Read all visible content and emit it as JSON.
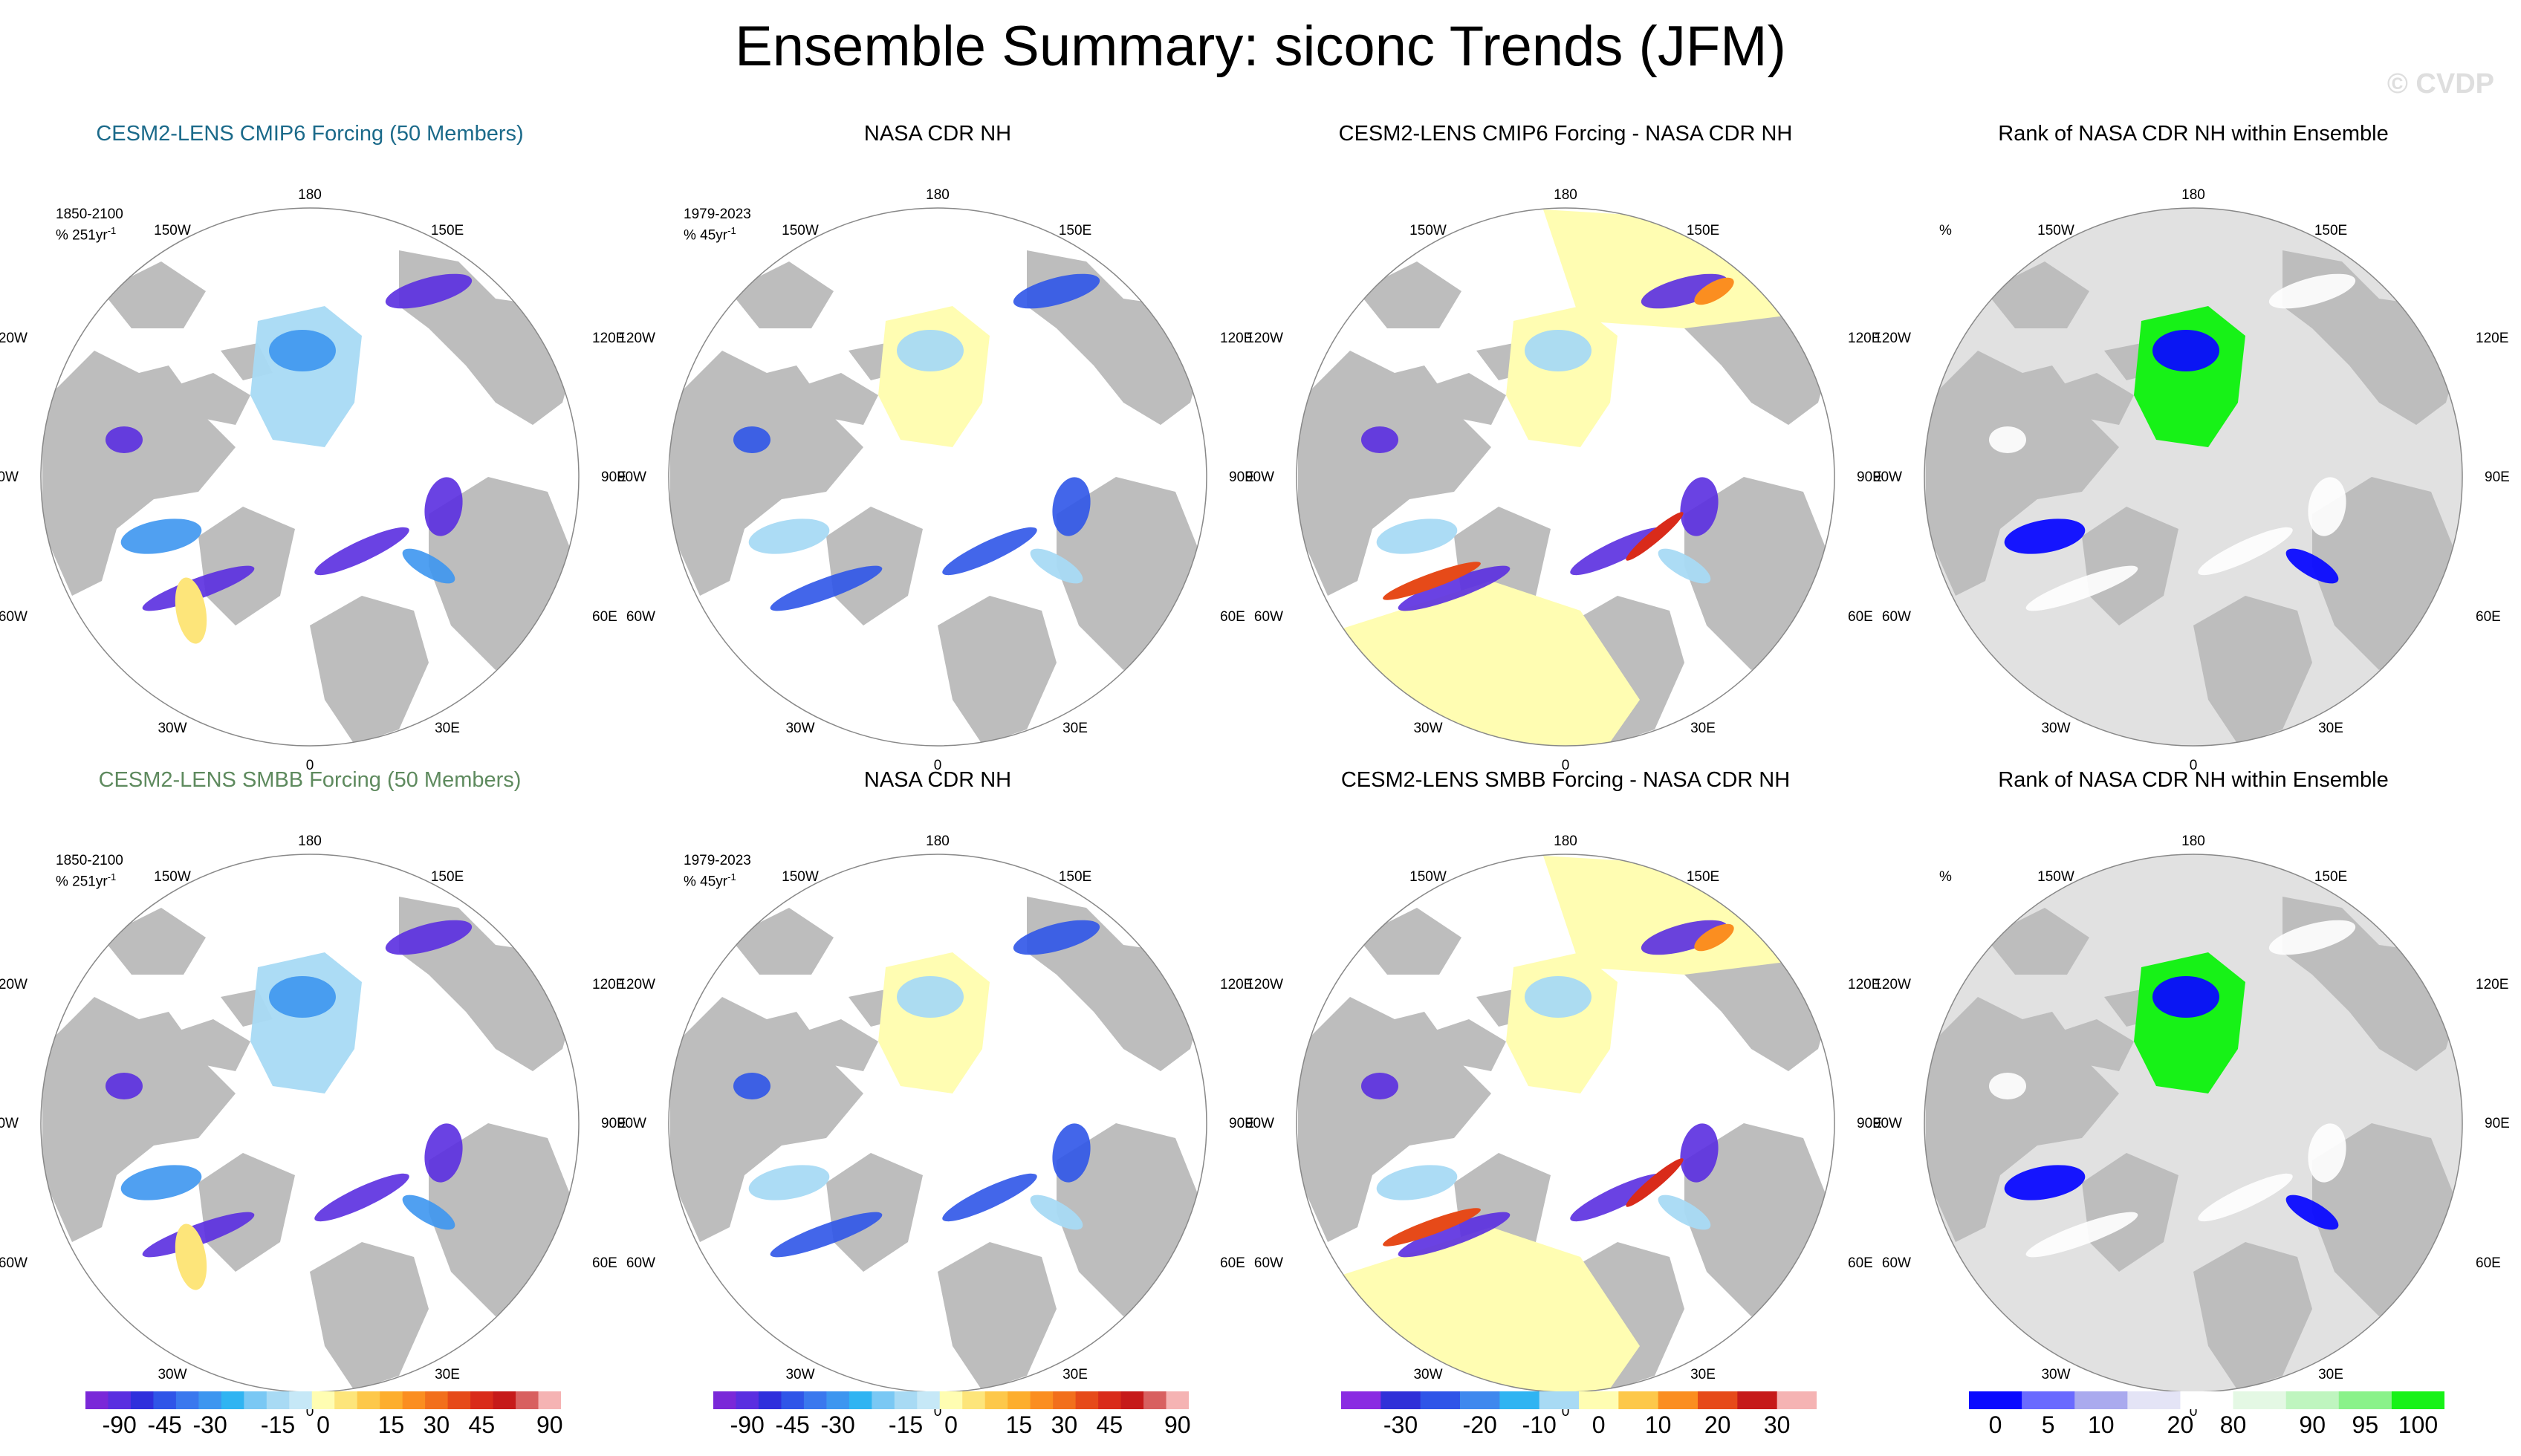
{
  "figure": {
    "title": "Ensemble Summary: siconc Trends (JFM)",
    "watermark": "© CVDP"
  },
  "longitude_labels": {
    "top": "180",
    "bottom": "0",
    "upper_left": "150W",
    "upper_right": "150E",
    "left_upper": "120W",
    "right_upper": "120E",
    "left": "90W",
    "right": "90E",
    "left_lower": "60W",
    "right_lower": "60E",
    "lower_left": "30W",
    "lower_right": "30E"
  },
  "rows": [
    {
      "panels": [
        {
          "title": "CESM2-LENS CMIP6 Forcing (50 Members)",
          "title_color": "#1b6a8a",
          "info_line1": "1850-2100",
          "info_line2": "% 251yr",
          "info_sup": "-1",
          "field": "model"
        },
        {
          "title": "NASA CDR NH",
          "title_color": "#000000",
          "info_line1": "1979-2023",
          "info_line2": "% 45yr",
          "info_sup": "-1",
          "field": "obs"
        },
        {
          "title": "CESM2-LENS CMIP6 Forcing - NASA CDR NH",
          "title_color": "#000000",
          "info_line1": "",
          "info_line2": "",
          "info_sup": "",
          "field": "diff"
        },
        {
          "title": "Rank of NASA CDR NH within Ensemble",
          "title_color": "#000000",
          "info_line1": "%",
          "info_line2": "",
          "info_sup": "",
          "field": "rank"
        }
      ]
    },
    {
      "panels": [
        {
          "title": "CESM2-LENS SMBB Forcing (50 Members)",
          "title_color": "#5e8a5e",
          "info_line1": "1850-2100",
          "info_line2": "% 251yr",
          "info_sup": "-1",
          "field": "model"
        },
        {
          "title": "NASA CDR NH",
          "title_color": "#000000",
          "info_line1": "1979-2023",
          "info_line2": "% 45yr",
          "info_sup": "-1",
          "field": "obs"
        },
        {
          "title": "CESM2-LENS SMBB Forcing - NASA CDR NH",
          "title_color": "#000000",
          "info_line1": "",
          "info_line2": "",
          "info_sup": "",
          "field": "diff"
        },
        {
          "title": "Rank of NASA CDR NH within Ensemble",
          "title_color": "#000000",
          "info_line1": "%",
          "info_line2": "",
          "info_sup": "",
          "field": "rank"
        }
      ]
    }
  ],
  "colorbars": [
    {
      "colors": [
        "#7a28d8",
        "#5a2ee0",
        "#2f2fdc",
        "#2f55e8",
        "#3a78ee",
        "#3d96f0",
        "#30b4f2",
        "#7ac8f4",
        "#a8daf4",
        "#c6e8f7",
        "#fffdb2",
        "#fde57a",
        "#fdc84a",
        "#fdae2d",
        "#fb8e20",
        "#f26f1c",
        "#e64a19",
        "#d92b1a",
        "#c61a1a",
        "#d86060",
        "#f5b3b3"
      ],
      "ticks": [
        "-90",
        "-45",
        "-30",
        "-15",
        "0",
        "15",
        "30",
        "45",
        "90"
      ]
    },
    {
      "colors": [
        "#7a28d8",
        "#5a2ee0",
        "#2f2fdc",
        "#2f55e8",
        "#3a78ee",
        "#3d96f0",
        "#30b4f2",
        "#7ac8f4",
        "#a8daf4",
        "#c6e8f7",
        "#fffdb2",
        "#fde57a",
        "#fdc84a",
        "#fdae2d",
        "#fb8e20",
        "#f26f1c",
        "#e64a19",
        "#d92b1a",
        "#c61a1a",
        "#d86060",
        "#f5b3b3"
      ],
      "ticks": [
        "-90",
        "-45",
        "-30",
        "-15",
        "0",
        "15",
        "30",
        "45",
        "90"
      ]
    },
    {
      "colors": [
        "#8a2be2",
        "#3030d8",
        "#2f55e8",
        "#3f88ee",
        "#30b4f2",
        "#a8daf4",
        "#fffdb2",
        "#fdc84a",
        "#fb8e20",
        "#e64a19",
        "#c61a1a",
        "#f5b3b3"
      ],
      "ticks": [
        "-30",
        "-20",
        "-10",
        "0",
        "10",
        "20",
        "30"
      ]
    },
    {
      "colors": [
        "#0a0aff",
        "#6a6aff",
        "#aaaaee",
        "#e4e4f6",
        "#ffffff",
        "#e4f8e4",
        "#bff5bf",
        "#8af28a",
        "#17f217"
      ],
      "ticks": [
        "0",
        "5",
        "10",
        "20",
        "80",
        "90",
        "95",
        "100"
      ]
    }
  ],
  "chart_data": [
    {
      "type": "heatmap",
      "title": "CESM2-LENS CMIP6 Forcing (50 Members)",
      "period": "1850-2100",
      "units": "% 251yr-1",
      "projection": "north polar stereographic",
      "colorbar_ticks": [
        -90,
        -45,
        -30,
        -15,
        0,
        15,
        30,
        45,
        90
      ]
    },
    {
      "type": "heatmap",
      "title": "NASA CDR NH",
      "period": "1979-2023",
      "units": "% 45yr-1",
      "projection": "north polar stereographic",
      "colorbar_ticks": [
        -90,
        -45,
        -30,
        -15,
        0,
        15,
        30,
        45,
        90
      ]
    },
    {
      "type": "heatmap",
      "title": "CESM2-LENS CMIP6 Forcing - NASA CDR NH",
      "projection": "north polar stereographic",
      "colorbar_ticks": [
        -30,
        -20,
        -10,
        0,
        10,
        20,
        30
      ]
    },
    {
      "type": "heatmap",
      "title": "Rank of NASA CDR NH within Ensemble",
      "units": "%",
      "projection": "north polar stereographic",
      "colorbar_ticks": [
        0,
        5,
        10,
        20,
        80,
        90,
        95,
        100
      ]
    },
    {
      "type": "heatmap",
      "title": "CESM2-LENS SMBB Forcing (50 Members)",
      "period": "1850-2100",
      "units": "% 251yr-1",
      "projection": "north polar stereographic",
      "colorbar_ticks": [
        -90,
        -45,
        -30,
        -15,
        0,
        15,
        30,
        45,
        90
      ]
    },
    {
      "type": "heatmap",
      "title": "NASA CDR NH",
      "period": "1979-2023",
      "units": "% 45yr-1",
      "projection": "north polar stereographic",
      "colorbar_ticks": [
        -90,
        -45,
        -30,
        -15,
        0,
        15,
        30,
        45,
        90
      ]
    },
    {
      "type": "heatmap",
      "title": "CESM2-LENS SMBB Forcing - NASA CDR NH",
      "projection": "north polar stereographic",
      "colorbar_ticks": [
        -30,
        -20,
        -10,
        0,
        10,
        20,
        30
      ]
    },
    {
      "type": "heatmap",
      "title": "Rank of NASA CDR NH within Ensemble",
      "units": "%",
      "projection": "north polar stereographic",
      "colorbar_ticks": [
        0,
        5,
        10,
        20,
        80,
        90,
        95,
        100
      ]
    }
  ]
}
